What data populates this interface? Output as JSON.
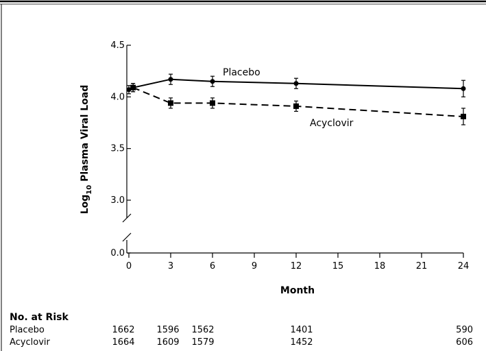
{
  "chart_data": {
    "type": "line",
    "xlabel": "Month",
    "ylabel": {
      "prefix": "Log",
      "subscript": "10",
      "suffix": " Plasma Viral Load"
    },
    "x_ticks": [
      0,
      3,
      6,
      9,
      12,
      15,
      18,
      21,
      24
    ],
    "y_ticks": [
      {
        "value": 4.5,
        "label": "4.5"
      },
      {
        "value": 4.0,
        "label": "4.0"
      },
      {
        "value": 3.5,
        "label": "3.5"
      },
      {
        "value": 3.0,
        "label": "3.0"
      },
      {
        "value": 0.0,
        "label": "0.0"
      }
    ],
    "xlim": [
      0,
      24
    ],
    "ylim": [
      2.8,
      4.5
    ],
    "y_axis_break": true,
    "grid": false,
    "series": [
      {
        "name": "Placebo",
        "line_style": "solid",
        "marker": "circle",
        "color": "#000000",
        "points": [
          {
            "x": 0,
            "y": 4.07,
            "err": 0.04
          },
          {
            "x": 0.3,
            "y": 4.09,
            "err": 0.04
          },
          {
            "x": 3,
            "y": 4.17,
            "err": 0.05
          },
          {
            "x": 6,
            "y": 4.15,
            "err": 0.05
          },
          {
            "x": 12,
            "y": 4.13,
            "err": 0.05
          },
          {
            "x": 24,
            "y": 4.08,
            "err": 0.08
          }
        ]
      },
      {
        "name": "Acyclovir",
        "line_style": "dashed",
        "marker": "square",
        "color": "#000000",
        "points": [
          {
            "x": 0.3,
            "y": 4.09,
            "err": 0.04
          },
          {
            "x": 3,
            "y": 3.94,
            "err": 0.05
          },
          {
            "x": 6,
            "y": 3.94,
            "err": 0.05
          },
          {
            "x": 12,
            "y": 3.91,
            "err": 0.05
          },
          {
            "x": 24,
            "y": 3.81,
            "err": 0.08
          }
        ]
      }
    ]
  },
  "at_risk": {
    "title": "No. at Risk",
    "columns_month": [
      0,
      3,
      6,
      12,
      24
    ],
    "rows": [
      {
        "label": "Placebo",
        "values": [
          "1662",
          "1596",
          "1562",
          "1401",
          "590"
        ]
      },
      {
        "label": "Acyclovir",
        "values": [
          "1664",
          "1609",
          "1579",
          "1452",
          "606"
        ]
      }
    ]
  }
}
